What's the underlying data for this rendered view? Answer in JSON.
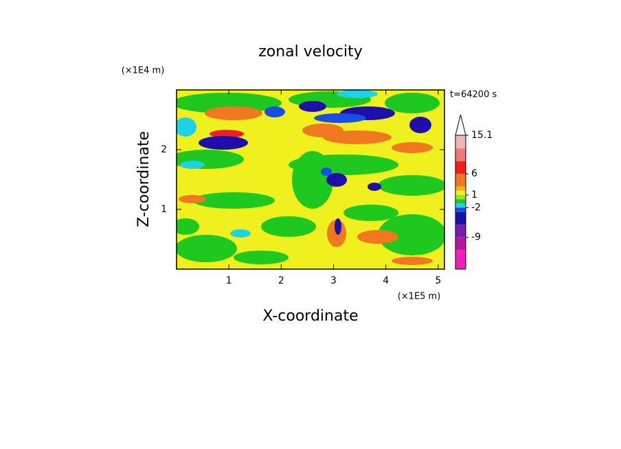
{
  "chart_data": {
    "type": "contour",
    "title": "zonal velocity",
    "x_label": "X-coordinate",
    "y_label": "Z-coordinate",
    "x_unit_label": "(×1E5 m)",
    "y_unit_label": "(×1E4 m)",
    "annotation": "t=64200 s",
    "xlim": [
      0,
      5.12
    ],
    "xticks": [
      1,
      2,
      3,
      4,
      5
    ],
    "ylim": [
      0,
      3
    ],
    "yticks": [
      1,
      2
    ],
    "colorbar": {
      "levels": [
        -16.5,
        -12,
        -9,
        -6,
        -3,
        -2,
        -1,
        0,
        1,
        2,
        3,
        6,
        9,
        12,
        15.1
      ],
      "colors": [
        "#f01dbf",
        "#b41aa0",
        "#7b1cab",
        "#1e0fad",
        "#1a4de6",
        "#1ed2e6",
        "#1ec81e",
        "#96e61e",
        "#f0f01e",
        "#f0b41e",
        "#f0781e",
        "#f01e1e",
        "#f07878",
        "#f0b4b4"
      ],
      "ticks": [
        -9,
        -2,
        1,
        6,
        15.1
      ],
      "extend": "max"
    }
  }
}
